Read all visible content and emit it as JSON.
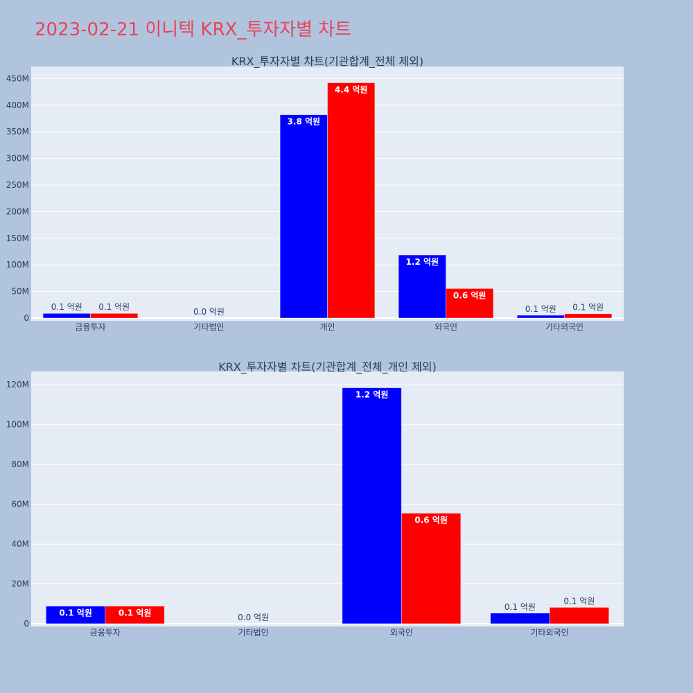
{
  "page": {
    "title": "2023-02-21 이니텍 KRX_투자자별 차트"
  },
  "colors": {
    "background": "#b0c4de",
    "plot_bg": "#e5ecf6",
    "series_a": "#0000ff",
    "series_b": "#ff0000",
    "title": "#e8445a"
  },
  "chart_data": [
    {
      "type": "bar",
      "title": "KRX_투자자별 차트(기관합계_전체 제외)",
      "categories": [
        "금융투자",
        "기타법인",
        "개인",
        "외국인",
        "기타외국인"
      ],
      "series": [
        {
          "color": "#0000ff",
          "values": [
            8800000,
            0,
            382000000,
            118500000,
            5300000
          ],
          "labels": [
            "0.1 억원",
            "",
            "3.8 억원",
            "1.2 억원",
            "0.1 억원"
          ]
        },
        {
          "color": "#ff0000",
          "values": [
            8800000,
            0,
            442000000,
            55500000,
            8200000
          ],
          "labels": [
            "0.1 억원",
            "0.0 억원",
            "4.4 억원",
            "0.6 억원",
            "0.1 억원"
          ]
        }
      ],
      "ylim": [
        0,
        470000000
      ],
      "yticks": [
        0,
        50000000,
        100000000,
        150000000,
        200000000,
        250000000,
        300000000,
        350000000,
        400000000,
        450000000
      ],
      "ytick_labels": [
        "0",
        "50M",
        "100M",
        "150M",
        "200M",
        "250M",
        "300M",
        "350M",
        "400M",
        "450M"
      ],
      "grid": true
    },
    {
      "type": "bar",
      "title": "KRX_투자자별 차트(기관합계_전체_개인 제외)",
      "categories": [
        "금융투자",
        "기타법인",
        "외국인",
        "기타외국인"
      ],
      "series": [
        {
          "color": "#0000ff",
          "values": [
            8800000,
            0,
            118500000,
            5300000
          ],
          "labels": [
            "0.1 억원",
            "",
            "1.2 억원",
            "0.1 억원"
          ]
        },
        {
          "color": "#ff0000",
          "values": [
            8800000,
            0,
            55500000,
            8200000
          ],
          "labels": [
            "0.1 억원",
            "0.0 억원",
            "0.6 억원",
            "0.1 억원"
          ]
        }
      ],
      "ylim": [
        0,
        126000000
      ],
      "yticks": [
        0,
        20000000,
        40000000,
        60000000,
        80000000,
        100000000,
        120000000
      ],
      "ytick_labels": [
        "0",
        "20M",
        "40M",
        "60M",
        "80M",
        "100M",
        "120M"
      ],
      "grid": true
    }
  ]
}
